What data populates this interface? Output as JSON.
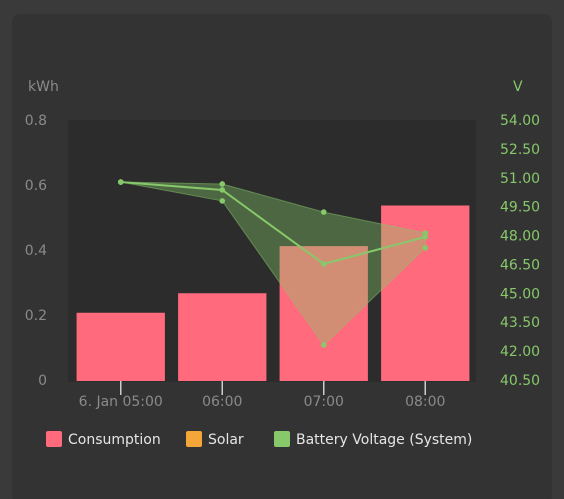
{
  "chart_data": {
    "type": "bar",
    "y_label": "kWh",
    "y2_label": "V",
    "categories": [
      "6. Jan 05:00",
      "06:00",
      "07:00",
      "08:00"
    ],
    "ylim": [
      0,
      0.8
    ],
    "yticks": [
      0,
      0.2,
      0.4,
      0.6,
      0.8
    ],
    "y2lim": [
      40.5,
      54
    ],
    "y2ticks": [
      {
        "value": 40.5,
        "label": "40.50"
      },
      {
        "value": 42,
        "label": "42.00"
      },
      {
        "value": 43.5,
        "label": "43.50"
      },
      {
        "value": 45,
        "label": "45.00"
      },
      {
        "value": 46.5,
        "label": "46.50"
      },
      {
        "value": 48,
        "label": "48.00"
      },
      {
        "value": 49.5,
        "label": "49.50"
      },
      {
        "value": 51,
        "label": "51.00"
      },
      {
        "value": 52.5,
        "label": "52.50"
      },
      {
        "value": 54,
        "label": "54.00"
      }
    ],
    "series": [
      {
        "name": "Consumption",
        "color": "#ff6b7d",
        "type": "bar",
        "values": [
          0.21,
          0.27,
          0.415,
          0.54
        ]
      },
      {
        "name": "Solar",
        "color": "#f5a638",
        "type": "bar",
        "values": [
          0,
          0,
          0,
          0
        ]
      },
      {
        "name": "Battery Voltage (System)",
        "color": "#86c86a",
        "type": "line",
        "axis": "y2",
        "values": [
          50.83,
          50.42,
          46.58,
          47.98
        ],
        "max": [
          50.83,
          50.73,
          49.27,
          48.18
        ],
        "min": [
          50.83,
          49.85,
          42.37,
          47.41
        ]
      }
    ]
  }
}
